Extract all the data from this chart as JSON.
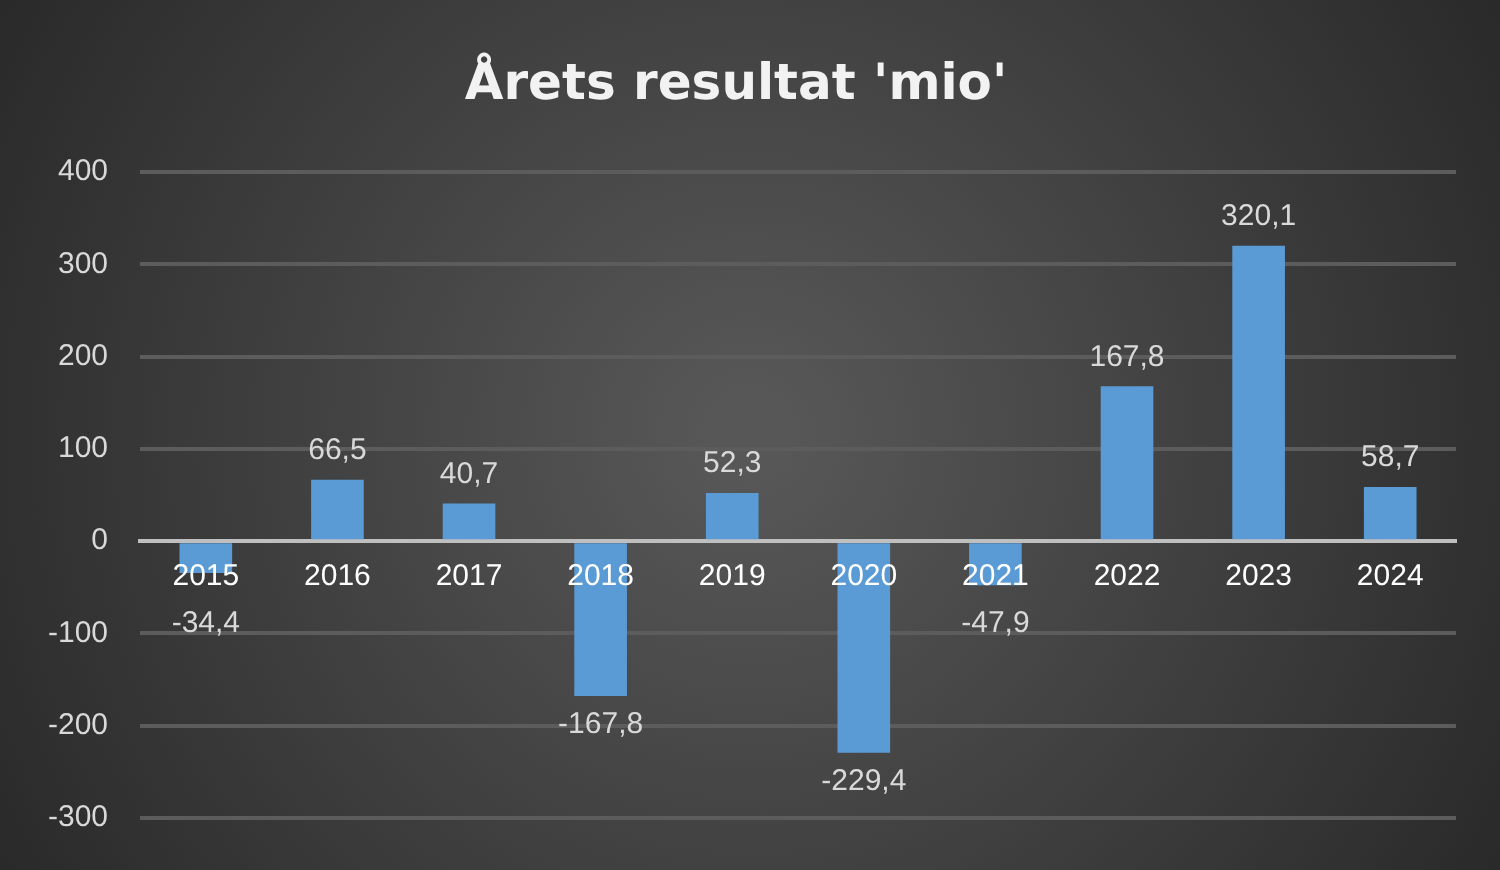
{
  "chart_data": {
    "type": "bar",
    "title": "Årets resultat 'mio'",
    "categories": [
      "2015",
      "2016",
      "2017",
      "2018",
      "2019",
      "2020",
      "2021",
      "2022",
      "2023",
      "2024"
    ],
    "values": [
      -34.4,
      66.5,
      40.7,
      -167.8,
      52.3,
      -229.4,
      -47.9,
      167.8,
      320.1,
      58.7
    ],
    "value_labels": [
      "-34,4",
      "66,5",
      "40,7",
      "-167,8",
      "52,3",
      "-229,4",
      "-47,9",
      "167,8",
      "320,1",
      "58,7"
    ],
    "color": "#5b9bd5",
    "ylim": [
      -300,
      400
    ],
    "yticks": [
      -300,
      -200,
      -100,
      0,
      100,
      200,
      300,
      400
    ],
    "grid": "y",
    "legend": false
  }
}
